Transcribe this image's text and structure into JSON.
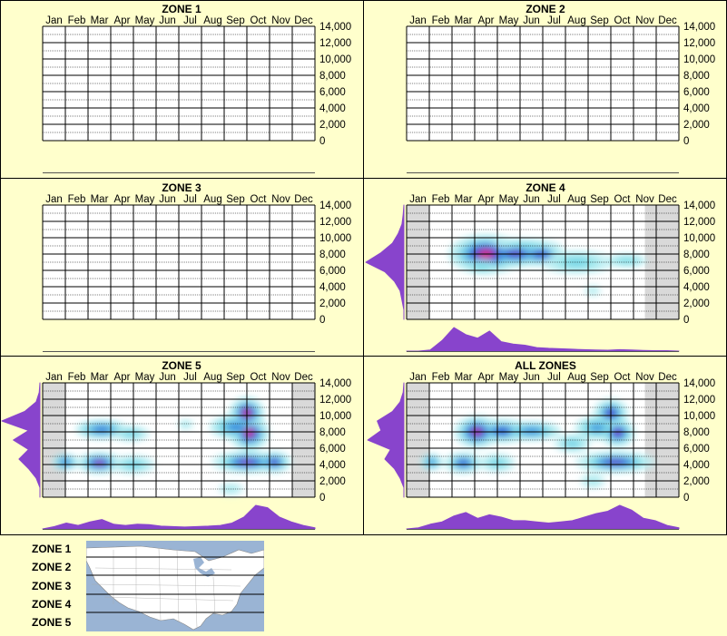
{
  "months": [
    "Jan",
    "Feb",
    "Mar",
    "Apr",
    "May",
    "Jun",
    "Jul",
    "Aug",
    "Sep",
    "Oct",
    "Nov",
    "Dec"
  ],
  "y_ticks": [
    "14,000",
    "12,000",
    "10,000",
    "8,000",
    "6,000",
    "4,000",
    "2,000",
    "0"
  ],
  "chart_data": [
    {
      "type": "heatmap",
      "title": "ZONE 1",
      "xlabel": "",
      "ylabel": "",
      "x_categories": [
        "Jan",
        "Feb",
        "Mar",
        "Apr",
        "May",
        "Jun",
        "Jul",
        "Aug",
        "Sep",
        "Oct",
        "Nov",
        "Dec"
      ],
      "ylim": [
        0,
        14000
      ],
      "blobs": [],
      "marginal_x": [],
      "marginal_y": [],
      "shaded_months": []
    },
    {
      "type": "heatmap",
      "title": "ZONE 2",
      "xlabel": "",
      "ylabel": "",
      "x_categories": [
        "Jan",
        "Feb",
        "Mar",
        "Apr",
        "May",
        "Jun",
        "Jul",
        "Aug",
        "Sep",
        "Oct",
        "Nov",
        "Dec"
      ],
      "ylim": [
        0,
        14000
      ],
      "blobs": [],
      "marginal_x": [],
      "marginal_y": [],
      "shaded_months": []
    },
    {
      "type": "heatmap",
      "title": "ZONE 3",
      "xlabel": "",
      "ylabel": "",
      "x_categories": [
        "Jan",
        "Feb",
        "Mar",
        "Apr",
        "May",
        "Jun",
        "Jul",
        "Aug",
        "Sep",
        "Oct",
        "Nov",
        "Dec"
      ],
      "ylim": [
        0,
        14000
      ],
      "blobs": [],
      "marginal_x": [],
      "marginal_y": [],
      "shaded_months": []
    },
    {
      "type": "heatmap",
      "title": "ZONE 4",
      "xlabel": "",
      "ylabel": "",
      "x_categories": [
        "Jan",
        "Feb",
        "Mar",
        "Apr",
        "May",
        "Jun",
        "Jul",
        "Aug",
        "Sep",
        "Oct",
        "Nov",
        "Dec"
      ],
      "ylim": [
        0,
        14000
      ],
      "blobs": [
        {
          "month": 3.5,
          "elev": 8000,
          "intensity": 1.0,
          "sx": 0.75,
          "sy": 1100
        },
        {
          "month": 4.8,
          "elev": 8100,
          "intensity": 0.8,
          "sx": 0.7,
          "sy": 800
        },
        {
          "month": 5.9,
          "elev": 8000,
          "intensity": 0.75,
          "sx": 0.5,
          "sy": 700
        },
        {
          "month": 5.2,
          "elev": 9000,
          "intensity": 0.3,
          "sx": 1.0,
          "sy": 500
        },
        {
          "month": 3.3,
          "elev": 6500,
          "intensity": 0.25,
          "sx": 0.6,
          "sy": 800
        },
        {
          "month": 7.5,
          "elev": 7000,
          "intensity": 0.28,
          "sx": 1.0,
          "sy": 900
        },
        {
          "month": 9.7,
          "elev": 7200,
          "intensity": 0.25,
          "sx": 0.8,
          "sy": 700
        },
        {
          "month": 8.2,
          "elev": 3500,
          "intensity": 0.12,
          "sx": 0.5,
          "sy": 900
        }
      ],
      "marginal_x": [
        0,
        0,
        0.05,
        0.45,
        1.0,
        0.7,
        0.55,
        0.85,
        0.4,
        0.3,
        0.25,
        0.15,
        0.12,
        0.1,
        0.08,
        0.06,
        0.05,
        0.04,
        0.06,
        0.05,
        0.03,
        0.02,
        0.02,
        0
      ],
      "marginal_y": [
        0,
        0,
        0.05,
        0.1,
        0.25,
        0.5,
        1.0,
        0.6,
        0.3,
        0.15,
        0.05,
        0.02,
        0
      ],
      "shaded_months": [
        0,
        10.5
      ]
    },
    {
      "type": "heatmap",
      "title": "ZONE 5",
      "xlabel": "",
      "ylabel": "",
      "x_categories": [
        "Jan",
        "Feb",
        "Mar",
        "Apr",
        "May",
        "Jun",
        "Jul",
        "Aug",
        "Sep",
        "Oct",
        "Nov",
        "Dec"
      ],
      "ylim": [
        0,
        14000
      ],
      "blobs": [
        {
          "month": 2.5,
          "elev": 4200,
          "intensity": 0.9,
          "sx": 0.45,
          "sy": 600
        },
        {
          "month": 1.0,
          "elev": 4300,
          "intensity": 0.55,
          "sx": 0.35,
          "sy": 600
        },
        {
          "month": 2.6,
          "elev": 8300,
          "intensity": 0.55,
          "sx": 0.7,
          "sy": 700
        },
        {
          "month": 9.0,
          "elev": 10300,
          "intensity": 1.0,
          "sx": 0.35,
          "sy": 900
        },
        {
          "month": 9.1,
          "elev": 7900,
          "intensity": 1.0,
          "sx": 0.4,
          "sy": 1000
        },
        {
          "month": 8.5,
          "elev": 8600,
          "intensity": 0.5,
          "sx": 0.7,
          "sy": 900
        },
        {
          "month": 9.0,
          "elev": 4300,
          "intensity": 0.85,
          "sx": 0.7,
          "sy": 600
        },
        {
          "month": 10.2,
          "elev": 4300,
          "intensity": 0.8,
          "sx": 0.35,
          "sy": 600
        },
        {
          "month": 4.0,
          "elev": 4000,
          "intensity": 0.3,
          "sx": 0.6,
          "sy": 700
        },
        {
          "month": 6.3,
          "elev": 8900,
          "intensity": 0.2,
          "sx": 0.3,
          "sy": 500
        },
        {
          "month": 8.3,
          "elev": 1000,
          "intensity": 0.15,
          "sx": 0.5,
          "sy": 700
        },
        {
          "month": 3.9,
          "elev": 7800,
          "intensity": 0.3,
          "sx": 0.5,
          "sy": 600
        }
      ],
      "marginal_x": [
        0,
        0.1,
        0.25,
        0.15,
        0.3,
        0.4,
        0.2,
        0.15,
        0.2,
        0.18,
        0.12,
        0.1,
        0.08,
        0.1,
        0.12,
        0.15,
        0.25,
        0.5,
        1.0,
        0.9,
        0.5,
        0.3,
        0.15,
        0.05
      ],
      "marginal_y": [
        0,
        0,
        0.1,
        0.3,
        0.55,
        0.3,
        0.7,
        0.3,
        1.0,
        0.4,
        0.1,
        0.02,
        0
      ],
      "shaded_months": [
        0,
        11
      ]
    },
    {
      "type": "heatmap",
      "title": "ALL ZONES",
      "xlabel": "",
      "ylabel": "",
      "x_categories": [
        "Jan",
        "Feb",
        "Mar",
        "Apr",
        "May",
        "Jun",
        "Jul",
        "Aug",
        "Sep",
        "Oct",
        "Nov",
        "Dec"
      ],
      "ylim": [
        0,
        14000
      ],
      "blobs": [
        {
          "month": 3.1,
          "elev": 8000,
          "intensity": 0.95,
          "sx": 0.45,
          "sy": 900
        },
        {
          "month": 4.2,
          "elev": 8100,
          "intensity": 0.7,
          "sx": 0.55,
          "sy": 700
        },
        {
          "month": 2.5,
          "elev": 4200,
          "intensity": 0.7,
          "sx": 0.4,
          "sy": 600
        },
        {
          "month": 1.1,
          "elev": 4300,
          "intensity": 0.5,
          "sx": 0.3,
          "sy": 600
        },
        {
          "month": 9.0,
          "elev": 10300,
          "intensity": 0.8,
          "sx": 0.35,
          "sy": 800
        },
        {
          "month": 9.3,
          "elev": 7900,
          "intensity": 0.85,
          "sx": 0.35,
          "sy": 800
        },
        {
          "month": 8.4,
          "elev": 8500,
          "intensity": 0.45,
          "sx": 0.6,
          "sy": 900
        },
        {
          "month": 9.2,
          "elev": 4300,
          "intensity": 0.8,
          "sx": 0.8,
          "sy": 600
        },
        {
          "month": 5.5,
          "elev": 8100,
          "intensity": 0.5,
          "sx": 0.8,
          "sy": 700
        },
        {
          "month": 7.3,
          "elev": 6600,
          "intensity": 0.3,
          "sx": 0.5,
          "sy": 700
        },
        {
          "month": 4.0,
          "elev": 4200,
          "intensity": 0.3,
          "sx": 0.5,
          "sy": 700
        },
        {
          "month": 8.2,
          "elev": 2000,
          "intensity": 0.15,
          "sx": 0.5,
          "sy": 800
        }
      ],
      "marginal_x": [
        0,
        0.05,
        0.2,
        0.3,
        0.55,
        0.7,
        0.45,
        0.6,
        0.5,
        0.35,
        0.35,
        0.3,
        0.25,
        0.3,
        0.35,
        0.5,
        0.65,
        0.75,
        1.0,
        0.8,
        0.45,
        0.35,
        0.15,
        0.05
      ],
      "marginal_y": [
        0,
        0,
        0.1,
        0.25,
        0.5,
        0.35,
        0.95,
        0.6,
        0.7,
        0.3,
        0.1,
        0.02,
        0
      ],
      "shaded_months": [
        0,
        10.5
      ]
    }
  ],
  "legend": {
    "zones": [
      "ZONE 1",
      "ZONE 2",
      "ZONE 3",
      "ZONE 4",
      "ZONE 5"
    ]
  },
  "colors": {
    "background": "#ffffcc",
    "grid": "#000000",
    "marginal": "#8844cc",
    "shade": "#d9d9d9"
  }
}
